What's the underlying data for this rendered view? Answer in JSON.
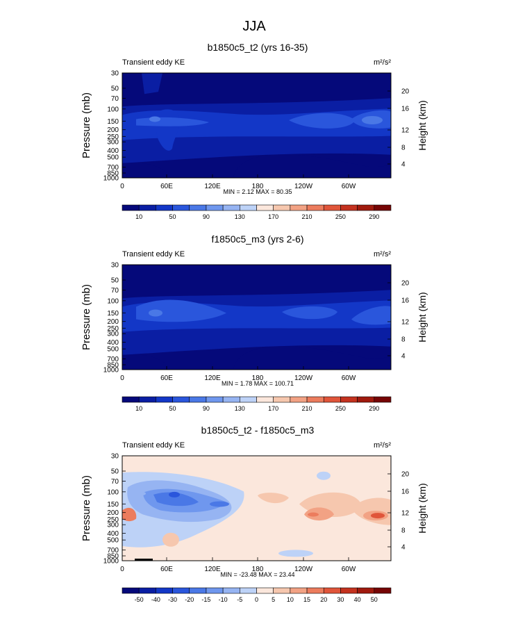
{
  "figure": {
    "title": "JJA"
  },
  "colorbars": {
    "absolute": {
      "colors": [
        "#05097a",
        "#0a1ea3",
        "#1337c7",
        "#2a56dc",
        "#4a78e6",
        "#6f97ee",
        "#96b4f2",
        "#bdd2f7",
        "#fbe7dc",
        "#f6c7ae",
        "#f2a284",
        "#ec7c5d",
        "#e0553a",
        "#c4321f",
        "#a01a0e",
        "#760505"
      ],
      "labels": [
        "10",
        "50",
        "90",
        "130",
        "170",
        "210",
        "250",
        "290"
      ]
    },
    "difference": {
      "colors": [
        "#05097a",
        "#0a1ea3",
        "#1337c7",
        "#2a56dc",
        "#4a78e6",
        "#6f97ee",
        "#96b4f2",
        "#bdd2f7",
        "#fbe7dc",
        "#f6c7ae",
        "#f2a284",
        "#ec7c5d",
        "#e0553a",
        "#c4321f",
        "#a01a0e",
        "#760505"
      ],
      "labels": [
        "-50",
        "-40",
        "-30",
        "-20",
        "-15",
        "-10",
        "-5",
        "0",
        "5",
        "10",
        "15",
        "20",
        "30",
        "40",
        "50"
      ]
    }
  },
  "chart_data": [
    {
      "type": "heatmap",
      "title": "b1850c5_t2 (yrs 16-35)",
      "left_label": "Transient eddy KE",
      "units_label": "m²/s²",
      "ylabel": "Pressure (mb)",
      "ylabel_right": "Height (km)",
      "x_ticks": [
        "0",
        "60E",
        "120E",
        "180",
        "120W",
        "60W"
      ],
      "y_ticks": [
        "30",
        "50",
        "70",
        "100",
        "150",
        "200",
        "250",
        "300",
        "400",
        "500",
        "700",
        "850",
        "1000"
      ],
      "y_right_ticks": [
        "20",
        "16",
        "12",
        "8",
        "4"
      ],
      "stats": "MIN =   2.12  MAX =  80.35",
      "colorbar": "absolute"
    },
    {
      "type": "heatmap",
      "title": "f1850c5_m3 (yrs 2-6)",
      "left_label": "Transient eddy KE",
      "units_label": "m²/s²",
      "ylabel": "Pressure (mb)",
      "ylabel_right": "Height (km)",
      "x_ticks": [
        "0",
        "60E",
        "120E",
        "180",
        "120W",
        "60W"
      ],
      "y_ticks": [
        "30",
        "50",
        "70",
        "100",
        "150",
        "200",
        "250",
        "300",
        "400",
        "500",
        "700",
        "850",
        "1000"
      ],
      "y_right_ticks": [
        "20",
        "16",
        "12",
        "8",
        "4"
      ],
      "stats": "MIN =   1.78  MAX = 100.71",
      "colorbar": "absolute"
    },
    {
      "type": "heatmap",
      "title": "b1850c5_t2 - f1850c5_m3",
      "left_label": "Transient eddy KE",
      "units_label": "m²/s²",
      "ylabel": "Pressure (mb)",
      "ylabel_right": "Height (km)",
      "x_ticks": [
        "0",
        "60E",
        "120E",
        "180",
        "120W",
        "60W"
      ],
      "y_ticks": [
        "30",
        "50",
        "70",
        "100",
        "150",
        "200",
        "250",
        "300",
        "400",
        "500",
        "700",
        "850",
        "1000"
      ],
      "y_right_ticks": [
        "20",
        "16",
        "12",
        "8",
        "4"
      ],
      "stats": "MIN = -23.48  MAX =  23.44",
      "colorbar": "difference"
    }
  ]
}
